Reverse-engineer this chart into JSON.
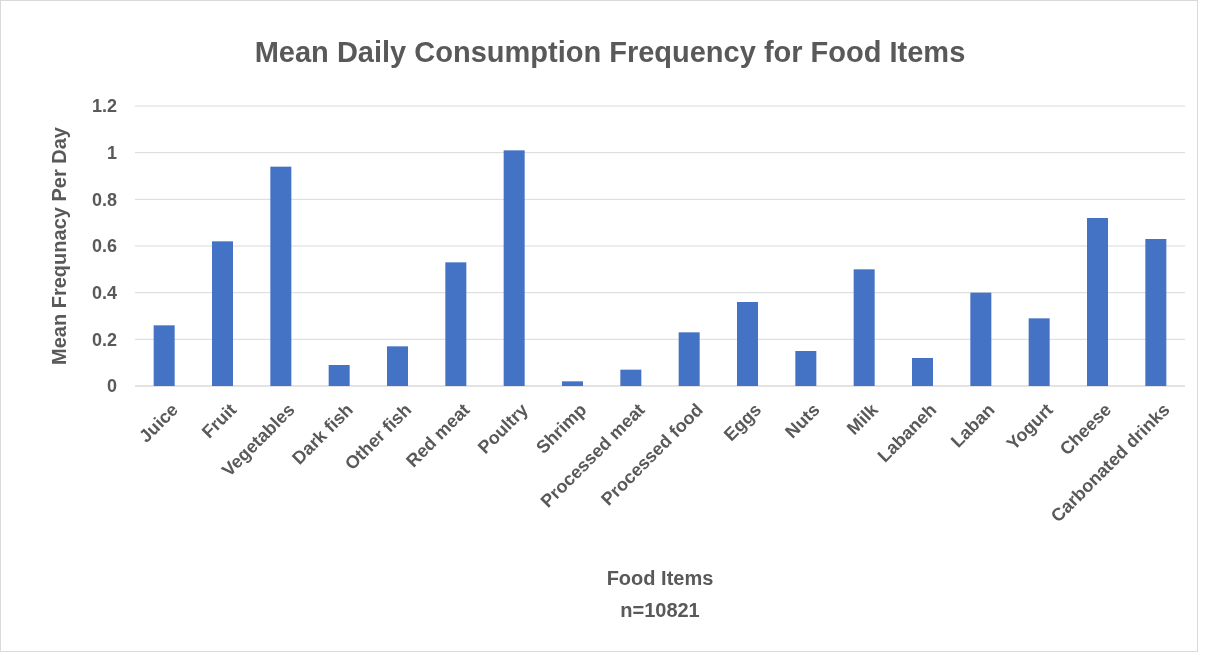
{
  "chart_data": {
    "type": "bar",
    "title": "Mean Daily Consumption Frequency for Food Items",
    "xlabel": "Food Items",
    "ylabel": "Mean Frequnacy Per Day",
    "annotations": [
      "n=10821"
    ],
    "categories": [
      "Juice",
      "Fruit",
      "Vegetables",
      "Dark fish",
      "Other fish",
      "Red meat",
      "Poultry",
      "Shrimp",
      "Processed meat",
      "Processed food",
      "Eggs",
      "Nuts",
      "Milk",
      "Labaneh",
      "Laban",
      "Yogurt",
      "Cheese",
      "Carbonated drinks"
    ],
    "values": [
      0.26,
      0.62,
      0.94,
      0.09,
      0.17,
      0.53,
      1.01,
      0.02,
      0.07,
      0.23,
      0.36,
      0.15,
      0.5,
      0.12,
      0.4,
      0.29,
      0.72,
      0.63
    ],
    "color": "#4472c4",
    "ylim": [
      0,
      1.2
    ],
    "yticks": [
      0,
      0.2,
      0.4,
      0.6,
      0.8,
      1,
      1.2
    ],
    "grid": "y"
  }
}
